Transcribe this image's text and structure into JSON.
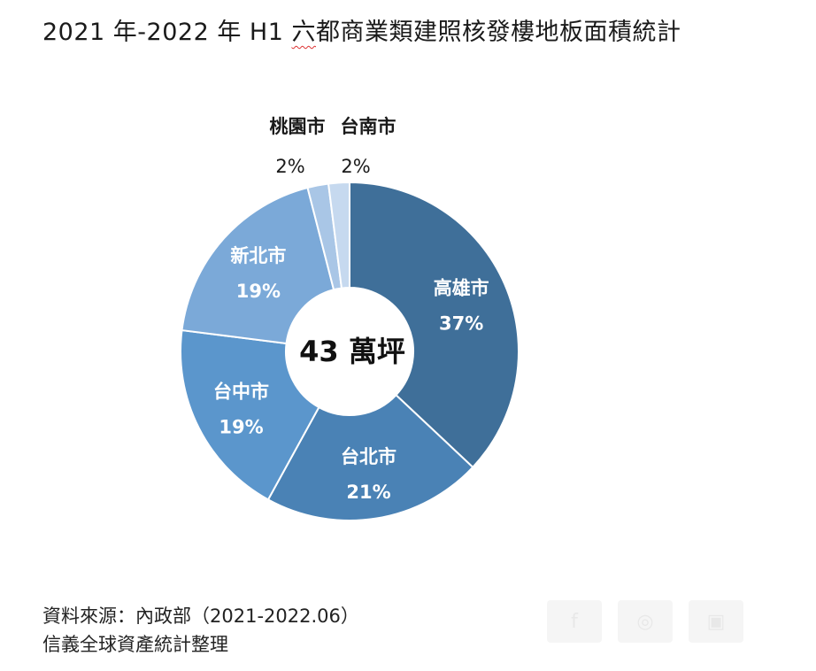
{
  "title": {
    "prefix": "2021 年-2022 年 H1 ",
    "wavy": "六",
    "suffix": "都商業類建照核發樓地板面積統計"
  },
  "chart_data": {
    "type": "pie",
    "variant": "donut",
    "center_label": "43 萬坪",
    "slices": [
      {
        "label": "高雄市",
        "value": 37,
        "value_label": "37%",
        "color": "#3f6f99"
      },
      {
        "label": "台北市",
        "value": 21,
        "value_label": "21%",
        "color": "#4a82b5"
      },
      {
        "label": "台中市",
        "value": 19,
        "value_label": "19%",
        "color": "#5b96cc"
      },
      {
        "label": "新北市",
        "value": 19,
        "value_label": "19%",
        "color": "#7ba9d8"
      },
      {
        "label": "桃園市",
        "value": 2,
        "value_label": "2%",
        "color": "#a9c6e6"
      },
      {
        "label": "台南市",
        "value": 2,
        "value_label": "2%",
        "color": "#c6d9ef"
      }
    ]
  },
  "source": {
    "line1": "資料來源：內政部（2021-2022.06）",
    "line2": "信義全球資產統計整理"
  },
  "icons": [
    "share-icon",
    "pinterest-icon",
    "line-icon"
  ]
}
